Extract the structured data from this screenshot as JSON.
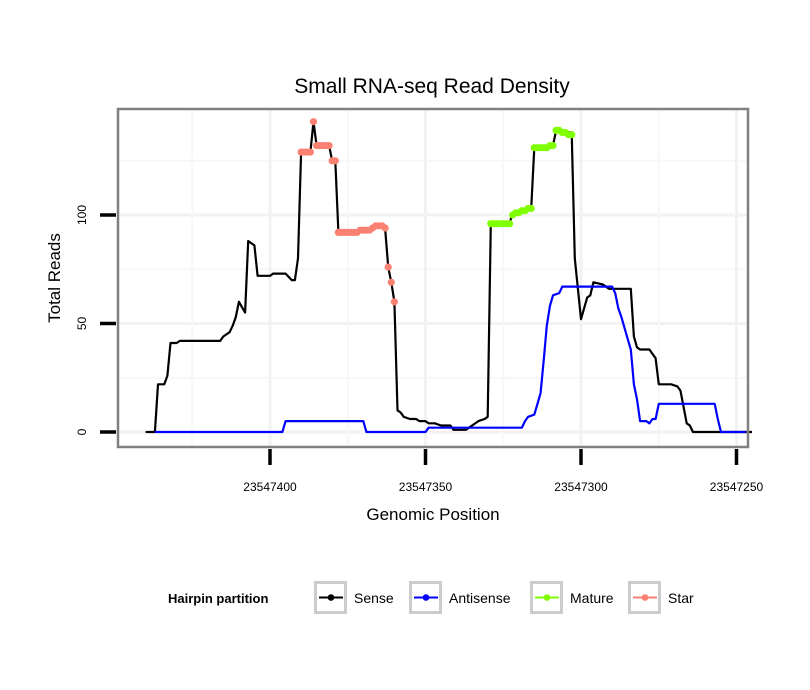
{
  "chart_data": {
    "type": "line",
    "title": "Small RNA-seq Read Density",
    "xlabel": "Genomic Position",
    "ylabel": "Total Reads",
    "x_reversed": true,
    "xlim": [
      23547450,
      23547245
    ],
    "ylim": [
      -7,
      148
    ],
    "x_ticks": [
      23547400,
      23547350,
      23547300,
      23547250
    ],
    "x_tick_labels": [
      "23547400",
      "23547350",
      "23547300",
      "23547250"
    ],
    "y_ticks": [
      0,
      50,
      100
    ],
    "y_tick_labels": [
      "0",
      "50",
      "100"
    ],
    "grid": true,
    "legend": {
      "title": "Hairpin partition",
      "placement": "bottom",
      "entries": [
        {
          "label": "Sense",
          "color": "#000000"
        },
        {
          "label": "Antisense",
          "color": "#0000ff"
        },
        {
          "label": "Mature",
          "color": "#7fff00"
        },
        {
          "label": "Star",
          "color": "#fa8072"
        }
      ]
    },
    "series": [
      {
        "name": "Sense",
        "color": "#000000",
        "points": [
          [
            23547440,
            0
          ],
          [
            23547437,
            0
          ],
          [
            23547436,
            22
          ],
          [
            23547434,
            22
          ],
          [
            23547433,
            26
          ],
          [
            23547432,
            41
          ],
          [
            23547430,
            41
          ],
          [
            23547429,
            42
          ],
          [
            23547416,
            42
          ],
          [
            23547415,
            44
          ],
          [
            23547413,
            46
          ],
          [
            23547412,
            49
          ],
          [
            23547411,
            53
          ],
          [
            23547410,
            60
          ],
          [
            23547408,
            55
          ],
          [
            23547407,
            88
          ],
          [
            23547405,
            86
          ],
          [
            23547404,
            72
          ],
          [
            23547400,
            72
          ],
          [
            23547399,
            73
          ],
          [
            23547395,
            73
          ],
          [
            23547393,
            70
          ],
          [
            23547392,
            70
          ],
          [
            23547391,
            80
          ],
          [
            23547390,
            129
          ],
          [
            23547387,
            129
          ],
          [
            23547386,
            143
          ],
          [
            23547385,
            132
          ],
          [
            23547381,
            132
          ],
          [
            23547380,
            125
          ],
          [
            23547379,
            125
          ],
          [
            23547378,
            92
          ],
          [
            23547373,
            92
          ],
          [
            23547371,
            93
          ],
          [
            23547367,
            93
          ],
          [
            23547366,
            95
          ],
          [
            23547364,
            95
          ],
          [
            23547363,
            94
          ],
          [
            23547362,
            76
          ],
          [
            23547361,
            69
          ],
          [
            23547360,
            60
          ],
          [
            23547359,
            10
          ],
          [
            23547358,
            9
          ],
          [
            23547357,
            7
          ],
          [
            23547355,
            6
          ],
          [
            23547353,
            6
          ],
          [
            23547352,
            5
          ],
          [
            23547350,
            5
          ],
          [
            23547349,
            4
          ],
          [
            23547347,
            4
          ],
          [
            23547345,
            3
          ],
          [
            23547342,
            3
          ],
          [
            23547341,
            1
          ],
          [
            23547337,
            1
          ],
          [
            23547335,
            3
          ],
          [
            23547333,
            5
          ],
          [
            23547331,
            6
          ],
          [
            23547330,
            7
          ],
          [
            23547329,
            96
          ],
          [
            23547323,
            96
          ],
          [
            23547322,
            101
          ],
          [
            23547319,
            102
          ],
          [
            23547316,
            103
          ],
          [
            23547315,
            131
          ],
          [
            23547309,
            132
          ],
          [
            23547308,
            139
          ],
          [
            23547303,
            138
          ],
          [
            23547302,
            80
          ],
          [
            23547300,
            52
          ],
          [
            23547298,
            62
          ],
          [
            23547297,
            63
          ],
          [
            23547296,
            69
          ],
          [
            23547293,
            68
          ],
          [
            23547291,
            66
          ],
          [
            23547284,
            66
          ],
          [
            23547283,
            44
          ],
          [
            23547282,
            39
          ],
          [
            23547281,
            38
          ],
          [
            23547278,
            38
          ],
          [
            23547277,
            36
          ],
          [
            23547276,
            34
          ],
          [
            23547275,
            22
          ],
          [
            23547271,
            22
          ],
          [
            23547269,
            21
          ],
          [
            23547268,
            19
          ],
          [
            23547266,
            4
          ],
          [
            23547265,
            3
          ],
          [
            23547264,
            0
          ],
          [
            23547245,
            0
          ]
        ]
      },
      {
        "name": "Antisense",
        "color": "#0000ff",
        "points": [
          [
            23547437,
            0
          ],
          [
            23547396,
            0
          ],
          [
            23547395,
            5
          ],
          [
            23547370,
            5
          ],
          [
            23547369,
            0
          ],
          [
            23547350,
            0
          ],
          [
            23547349,
            2
          ],
          [
            23547330,
            2
          ],
          [
            23547319,
            2
          ],
          [
            23547318,
            5
          ],
          [
            23547317,
            7
          ],
          [
            23547315,
            8
          ],
          [
            23547314,
            13
          ],
          [
            23547313,
            18
          ],
          [
            23547312,
            33
          ],
          [
            23547311,
            49
          ],
          [
            23547310,
            58
          ],
          [
            23547309,
            63
          ],
          [
            23547307,
            64
          ],
          [
            23547306,
            67
          ],
          [
            23547290,
            67
          ],
          [
            23547289,
            64
          ],
          [
            23547288,
            57
          ],
          [
            23547287,
            53
          ],
          [
            23547285,
            43
          ],
          [
            23547284,
            38
          ],
          [
            23547283,
            22
          ],
          [
            23547282,
            15
          ],
          [
            23547281,
            5
          ],
          [
            23547279,
            5
          ],
          [
            23547278,
            4
          ],
          [
            23547277,
            6
          ],
          [
            23547276,
            6
          ],
          [
            23547275,
            13
          ],
          [
            23547257,
            13
          ],
          [
            23547256,
            6
          ],
          [
            23547255,
            0
          ],
          [
            23547247,
            0
          ]
        ]
      },
      {
        "name": "Mature",
        "color": "#7fff00",
        "points": [
          [
            23547329,
            96
          ],
          [
            23547328,
            96
          ],
          [
            23547327,
            96
          ],
          [
            23547326,
            96
          ],
          [
            23547325,
            96
          ],
          [
            23547324,
            96
          ],
          [
            23547323,
            96
          ],
          [
            23547322,
            100
          ],
          [
            23547321,
            101
          ],
          [
            23547320,
            101
          ],
          [
            23547319,
            102
          ],
          [
            23547318,
            102
          ],
          [
            23547317,
            103
          ],
          [
            23547316,
            103
          ],
          [
            23547315,
            131
          ],
          [
            23547314,
            131
          ],
          [
            23547313,
            131
          ],
          [
            23547312,
            131
          ],
          [
            23547311,
            131
          ],
          [
            23547310,
            132
          ],
          [
            23547309,
            132
          ],
          [
            23547308,
            139
          ],
          [
            23547307,
            139
          ],
          [
            23547306,
            138
          ],
          [
            23547305,
            138
          ],
          [
            23547304,
            137
          ],
          [
            23547303,
            137
          ]
        ]
      },
      {
        "name": "Star",
        "color": "#fa8072",
        "points": [
          [
            23547390,
            129
          ],
          [
            23547389,
            129
          ],
          [
            23547388,
            129
          ],
          [
            23547387,
            129
          ],
          [
            23547386,
            143
          ],
          [
            23547385,
            132
          ],
          [
            23547384,
            132
          ],
          [
            23547383,
            132
          ],
          [
            23547382,
            132
          ],
          [
            23547381,
            132
          ],
          [
            23547380,
            125
          ],
          [
            23547379,
            125
          ],
          [
            23547378,
            92
          ],
          [
            23547377,
            92
          ],
          [
            23547376,
            92
          ],
          [
            23547375,
            92
          ],
          [
            23547374,
            92
          ],
          [
            23547373,
            92
          ],
          [
            23547372,
            92
          ],
          [
            23547371,
            93
          ],
          [
            23547370,
            93
          ],
          [
            23547369,
            93
          ],
          [
            23547368,
            93
          ],
          [
            23547367,
            94
          ],
          [
            23547366,
            95
          ],
          [
            23547365,
            95
          ],
          [
            23547364,
            95
          ],
          [
            23547363,
            94
          ],
          [
            23547362,
            76
          ],
          [
            23547361,
            69
          ],
          [
            23547360,
            60
          ]
        ]
      }
    ]
  }
}
